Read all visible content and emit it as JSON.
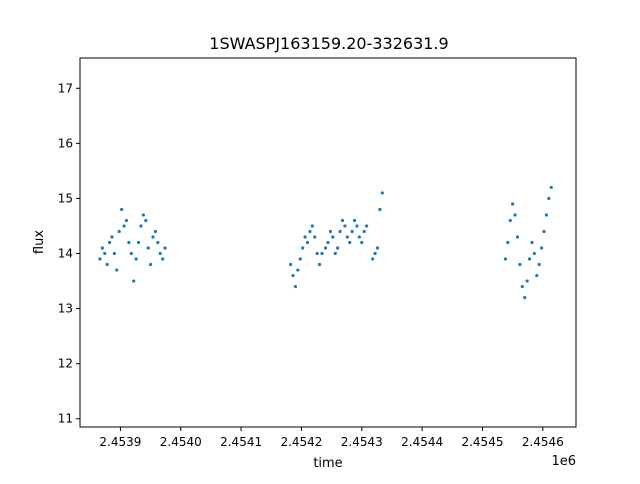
{
  "chart_data": {
    "type": "scatter",
    "title": "1SWASPJ163159.20-332631.9",
    "xlabel": "time",
    "ylabel": "flux",
    "x_offset_label": "1e6",
    "xlim": [
      2453833,
      2454655
    ],
    "ylim": [
      10.85,
      17.55
    ],
    "x_ticks": [
      {
        "value": 2453900,
        "label": "2.4539"
      },
      {
        "value": 2454000,
        "label": "2.4540"
      },
      {
        "value": 2454100,
        "label": "2.4541"
      },
      {
        "value": 2454200,
        "label": "2.4542"
      },
      {
        "value": 2454300,
        "label": "2.4543"
      },
      {
        "value": 2454400,
        "label": "2.4544"
      },
      {
        "value": 2454500,
        "label": "2.4545"
      },
      {
        "value": 2454600,
        "label": "2.4546"
      }
    ],
    "y_ticks": [
      {
        "value": 11,
        "label": "11"
      },
      {
        "value": 12,
        "label": "12"
      },
      {
        "value": 13,
        "label": "13"
      },
      {
        "value": 14,
        "label": "14"
      },
      {
        "value": 15,
        "label": "15"
      },
      {
        "value": 16,
        "label": "16"
      },
      {
        "value": 17,
        "label": "17"
      }
    ],
    "grid": false,
    "marker_color": "#1f77b4",
    "series": [
      {
        "x": [
          2453866,
          2453870,
          2453874,
          2453878,
          2453882,
          2453886,
          2453890,
          2453894,
          2453898,
          2453902,
          2453906,
          2453910,
          2453914,
          2453918,
          2453922,
          2453926,
          2453930,
          2453934,
          2453938,
          2453942,
          2453946,
          2453950,
          2453954,
          2453958,
          2453962,
          2453966,
          2453970,
          2453974,
          2454182,
          2454186,
          2454190,
          2454194,
          2454198,
          2454202,
          2454206,
          2454210,
          2454214,
          2454218,
          2454222,
          2454226,
          2454230,
          2454234,
          2454240,
          2454244,
          2454248,
          2454252,
          2454256,
          2454260,
          2454264,
          2454268,
          2454272,
          2454276,
          2454280,
          2454284,
          2454288,
          2454292,
          2454296,
          2454300,
          2454304,
          2454308,
          2454318,
          2454322,
          2454326,
          2454330,
          2454334,
          2454538,
          2454542,
          2454546,
          2454550,
          2454554,
          2454558,
          2454562,
          2454566,
          2454570,
          2454574,
          2454578,
          2454582,
          2454586,
          2454590,
          2454594,
          2454598,
          2454602,
          2454606,
          2454610,
          2454614
        ],
        "y": [
          13.9,
          14.1,
          14.0,
          13.8,
          14.2,
          14.3,
          14.0,
          13.7,
          14.4,
          14.8,
          14.5,
          14.6,
          14.2,
          14.0,
          13.5,
          13.9,
          14.2,
          14.5,
          14.7,
          14.6,
          14.1,
          13.8,
          14.3,
          14.4,
          14.2,
          14.0,
          13.9,
          14.1,
          13.8,
          13.6,
          13.4,
          13.7,
          13.9,
          14.1,
          14.3,
          14.2,
          14.4,
          14.5,
          14.3,
          14.0,
          13.8,
          14.0,
          14.1,
          14.2,
          14.4,
          14.3,
          14.0,
          14.1,
          14.4,
          14.6,
          14.5,
          14.3,
          14.2,
          14.4,
          14.6,
          14.5,
          14.3,
          14.2,
          14.4,
          14.5,
          13.9,
          14.0,
          14.1,
          14.8,
          15.1,
          13.9,
          14.2,
          14.6,
          14.9,
          14.7,
          14.3,
          13.8,
          13.4,
          13.2,
          13.5,
          13.9,
          14.2,
          14.0,
          13.6,
          13.8,
          14.1,
          14.4,
          14.7,
          15.0,
          15.2
        ]
      }
    ]
  }
}
